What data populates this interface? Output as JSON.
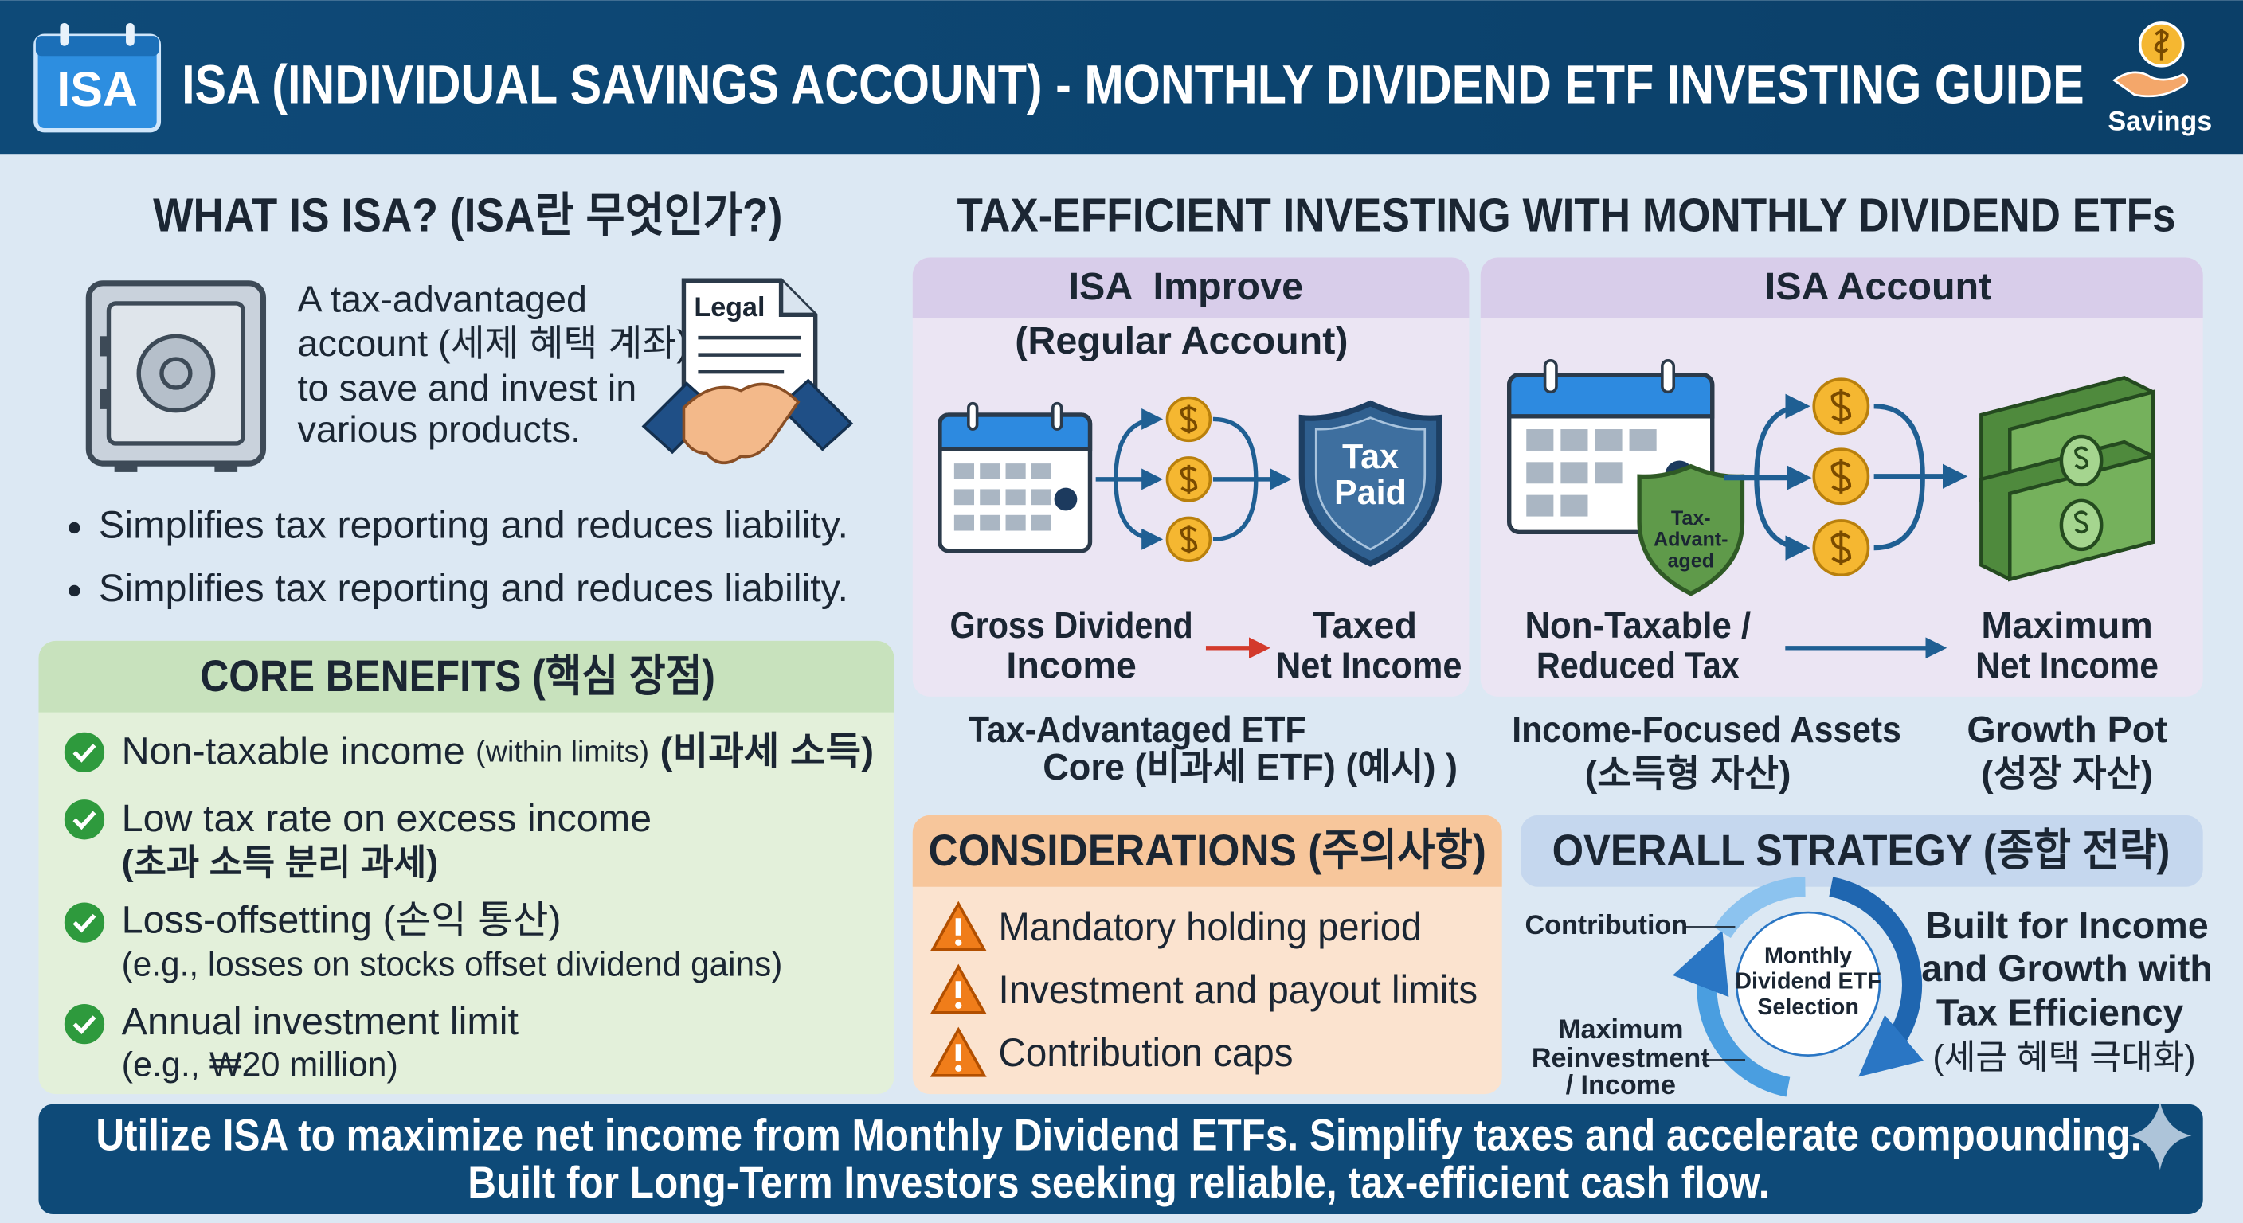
{
  "header": {
    "badge": "ISA",
    "title": "ISA (INDIVIDUAL SAVINGS ACCOUNT) - MONTHLY DIVIDEND ETF INVESTING GUIDE",
    "icon_label": "Savings"
  },
  "what_is": {
    "title": "WHAT IS ISA? (ISA란 무엇인가?)",
    "description_lines": [
      "A tax-advantaged",
      "account (세제 혜택 계좌)",
      "to save and invest in",
      "various products."
    ],
    "document_label": "Legal",
    "bullets": [
      "Simplifies tax reporting and reduces liability.",
      "Simplifies tax reporting and reduces liability."
    ]
  },
  "core_benefits": {
    "title": "CORE BENEFITS (핵심 장점)",
    "items": [
      {
        "text": "Non-taxable income",
        "note": "(within limits)",
        "korean": "(비과세 소득)"
      },
      {
        "text": "Low tax rate on excess income",
        "detail": "(초과 소득 분리 과세)"
      },
      {
        "text": "Loss-offsetting (손익 통산)",
        "detail": "(e.g., losses on stocks offset dividend gains)"
      },
      {
        "text": "Annual investment limit",
        "detail": "(e.g., ₩20 million)"
      }
    ]
  },
  "tax_efficient": {
    "title": "TAX-EFFICIENT INVESTING WITH MONTHLY DIVIDEND ETFs",
    "regular": {
      "header_lines": [
        "ISA  Improve",
        "(Regular Account)"
      ],
      "shield_lines": [
        "Tax",
        "Paid"
      ],
      "from_lines": [
        "Gross Dividend",
        "Income"
      ],
      "to_lines": [
        "Taxed",
        "Net Income"
      ]
    },
    "isa": {
      "header": "ISA Account",
      "shield_lines": [
        "Tax-",
        "Advant-",
        "aged"
      ],
      "from_lines": [
        "Non-Taxable /",
        "Reduced Tax"
      ],
      "to_lines": [
        "Maximum",
        "Net Income"
      ]
    },
    "assets": [
      {
        "lines": [
          "Tax-Advantaged ETF",
          "Core (비과세 ETF) (예시) )"
        ]
      },
      {
        "lines": [
          "Income-Focused Assets",
          "(소득형 자산)"
        ]
      },
      {
        "lines": [
          "Growth Pot",
          "(성장 자산)"
        ]
      }
    ]
  },
  "considerations": {
    "title": "CONSIDERATIONS (주의사항)",
    "items": [
      "Mandatory holding period",
      "Investment and payout limits",
      "Contribution caps"
    ]
  },
  "overall_strategy": {
    "title": "OVERALL STRATEGY (종합 전략)",
    "cycle_center_lines": [
      "Monthly",
      "Dividend ETF",
      "Selection"
    ],
    "contribution": "Contribution",
    "reinvestment_lines": [
      "Maximum",
      "Reinvestment",
      "/ Income"
    ],
    "summary_lines": [
      "Built for Income",
      "and Growth with",
      "Tax Efficiency",
      "(세금 혜택 극대화)"
    ]
  },
  "footer": {
    "lines": [
      "Utilize ISA to maximize net income from Monthly Dividend ETFs. Simplify taxes and accelerate compounding.",
      "Built for Long-Term Investors seeking reliable, tax-efficient cash flow."
    ]
  }
}
